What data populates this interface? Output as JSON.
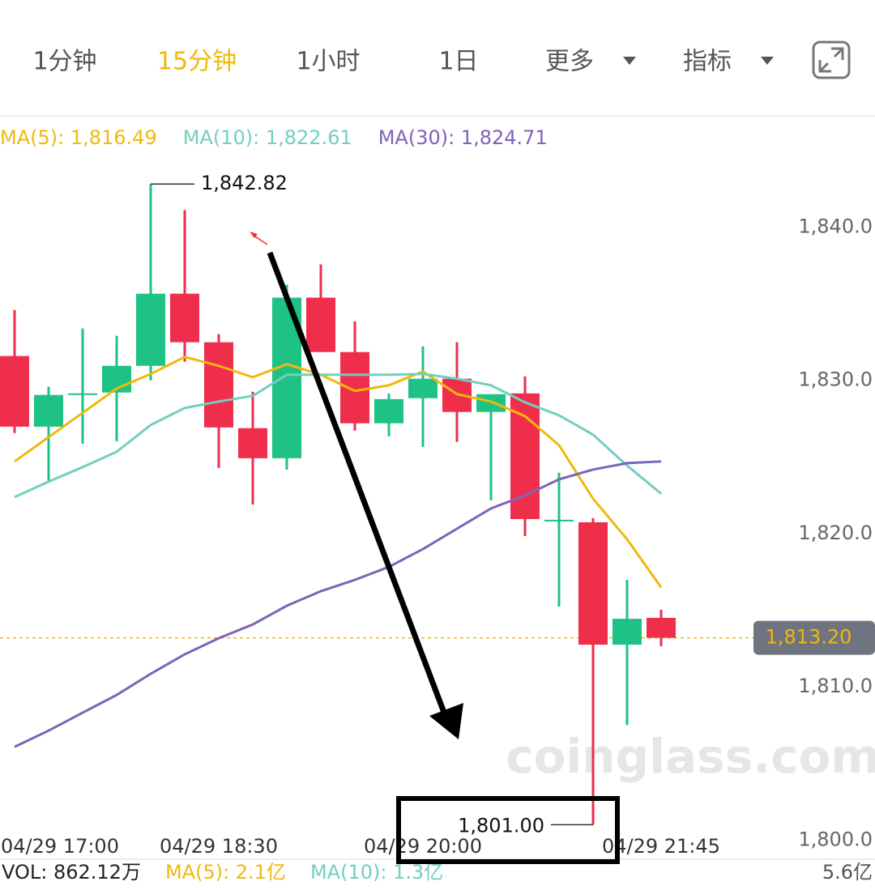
{
  "tabs": [
    {
      "label": "1分钟",
      "active": false
    },
    {
      "label": "15分钟",
      "active": true
    },
    {
      "label": "1小时",
      "active": false
    },
    {
      "label": "1日",
      "active": false
    },
    {
      "label": "更多",
      "active": false,
      "dropdown": true
    },
    {
      "label": "指标",
      "active": false,
      "dropdown": true
    }
  ],
  "chart_data": {
    "type": "candlestick",
    "categories": [
      "04/29 17:00",
      null,
      null,
      null,
      null,
      null,
      "04/29 18:30",
      null,
      null,
      null,
      null,
      null,
      "04/29 20:00",
      null,
      null,
      null,
      null,
      null,
      null,
      "04/29 21:45"
    ],
    "open": [
      1831.59,
      1826.98,
      1829.1,
      1829.21,
      1830.95,
      1835.66,
      1832.49,
      1826.88,
      1824.92,
      1835.4,
      1831.85,
      1827.2,
      1828.84,
      1830.11,
      1827.94,
      1829.15,
      1820.85,
      1820.74,
      1812.75,
      1814.5
    ],
    "high": [
      1834.6,
      1829.58,
      1833.39,
      1832.91,
      1842.82,
      1841.11,
      1833.02,
      1829.26,
      1836.24,
      1837.57,
      1833.86,
      1829.15,
      1832.22,
      1832.49,
      1829.1,
      1830.26,
      1823.97,
      1821.01,
      1816.98,
      1815.03
    ],
    "low": [
      1826.56,
      1823.39,
      1825.87,
      1826.03,
      1830.0,
      1831.22,
      1824.29,
      1821.9,
      1824.18,
      1831.85,
      1826.72,
      1826.35,
      1825.66,
      1825.98,
      1822.17,
      1819.84,
      1815.24,
      1801.0,
      1807.51,
      1812.65
    ],
    "close": [
      1826.98,
      1829.05,
      1829.1,
      1830.95,
      1835.66,
      1832.49,
      1826.93,
      1824.92,
      1835.4,
      1831.85,
      1827.2,
      1828.78,
      1830.11,
      1827.94,
      1829.1,
      1820.95,
      1820.85,
      1812.75,
      1814.44,
      1813.2
    ],
    "up_color": "#1fc285",
    "down_color": "#ef2e4c",
    "series": [
      {
        "name": "MA(5): 1,816.49",
        "color": "#f0b90b",
        "values": [
          1824.71,
          1826.3,
          1827.88,
          1829.47,
          1830.42,
          1831.53,
          1830.95,
          1830.21,
          1831.06,
          1830.37,
          1829.31,
          1829.68,
          1830.58,
          1829.1,
          1828.62,
          1827.67,
          1825.77,
          1822.28,
          1819.63,
          1816.49
        ]
      },
      {
        "name": "MA(10): 1,822.61",
        "color": "#72cfc0",
        "values": [
          1822.38,
          1823.39,
          1824.34,
          1825.34,
          1827.09,
          1828.2,
          1828.62,
          1828.99,
          1830.37,
          1830.37,
          1830.37,
          1830.37,
          1830.42,
          1830.11,
          1829.68,
          1828.57,
          1827.72,
          1826.46,
          1824.44,
          1822.61
        ]
      },
      {
        "name": "MA(30): 1,824.71",
        "color": "#7d64b8",
        "values": [
          1806.08,
          1807.14,
          1808.31,
          1809.47,
          1810.85,
          1812.12,
          1813.17,
          1814.07,
          1815.29,
          1816.24,
          1816.98,
          1817.83,
          1818.99,
          1820.32,
          1821.64,
          1822.49,
          1823.54,
          1824.18,
          1824.6,
          1824.71
        ]
      }
    ],
    "ylim": [
      1798.8,
      1846.9
    ],
    "yticks": [
      {
        "value": 1840,
        "label": "1,840.0"
      },
      {
        "value": 1830,
        "label": "1,830.0"
      },
      {
        "value": 1820,
        "label": "1,820.0"
      },
      {
        "value": 1810,
        "label": "1,810.0"
      },
      {
        "value": 1800,
        "label": "1,800.0"
      }
    ],
    "grid": false,
    "max_annotation": {
      "value": 1842.82,
      "label": "1,842.82"
    },
    "min_annotation": {
      "value": 1801.0,
      "label": "1,801.00"
    },
    "current_price": {
      "value": 1813.2,
      "label": "1,813.20"
    }
  },
  "volume": {
    "labels": [
      {
        "text": "VOL: 862.12万",
        "color": "#222222"
      },
      {
        "text": "MA(5): 2.1亿",
        "color": "#f0b90b"
      },
      {
        "text": "MA(10): 1.3亿",
        "color": "#72cfc0"
      }
    ],
    "max_label": "5.6亿"
  },
  "watermark": "coinglass.com"
}
